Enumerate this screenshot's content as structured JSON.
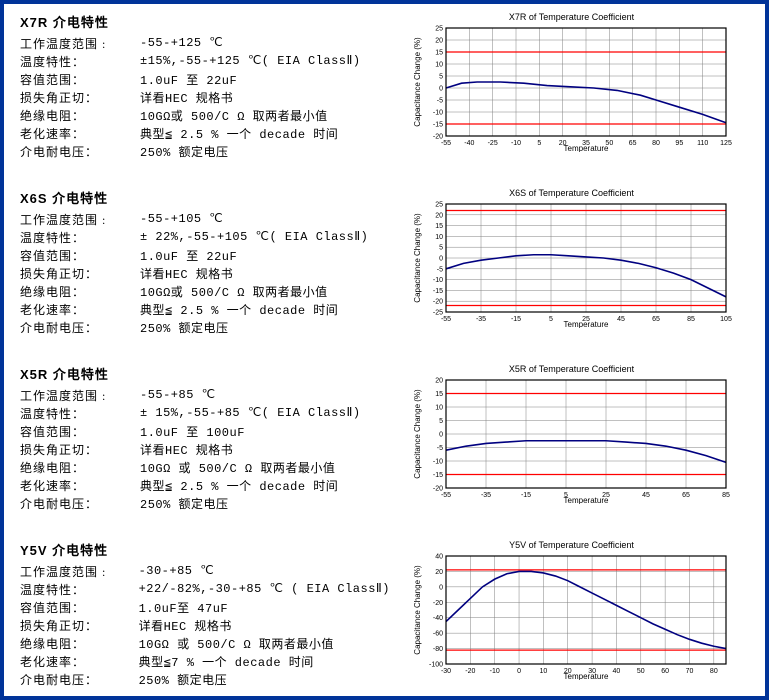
{
  "page_border_color": "#003399",
  "sections": [
    {
      "id": "x7r",
      "title": "X7R 介电特性",
      "rows": [
        {
          "label": "工作温度范围 :",
          "value": "-55-+125 ℃"
        },
        {
          "label": "温度特性：",
          "value": "±15%,-55-+125 ℃( EIA ClassⅡ)"
        },
        {
          "label": "容值范围：",
          "value": "1.0uF 至 22uF"
        },
        {
          "label": "损失角正切：",
          "value": "详看HEC 规格书"
        },
        {
          "label": "绝缘电阻：",
          "value": "10GΩ或 500/C Ω 取两者最小值"
        },
        {
          "label": "老化速率：",
          "value": "典型≦ 2.5 % 一个 decade 时间"
        },
        {
          "label": "介电耐电压：",
          "value": "250% 额定电压"
        }
      ],
      "chart": {
        "title": "X7R of Temperature Coefficient",
        "ylabel": "Capacitance Change (%)",
        "xlabel": "Temperature",
        "xlim": [
          -55,
          125
        ],
        "xtick_step": 15,
        "ylim": [
          -20,
          25
        ],
        "ytick_step": 5,
        "tolerance_lines": [
          -15,
          15
        ],
        "series": {
          "color": "#000080",
          "width": 1.6,
          "points": [
            [
              -55,
              0
            ],
            [
              -45,
              2
            ],
            [
              -35,
              2.5
            ],
            [
              -20,
              2.5
            ],
            [
              -5,
              2
            ],
            [
              10,
              1
            ],
            [
              25,
              0.5
            ],
            [
              40,
              0
            ],
            [
              55,
              -1
            ],
            [
              70,
              -3
            ],
            [
              80,
              -5
            ],
            [
              95,
              -8
            ],
            [
              110,
              -11
            ],
            [
              125,
              -14.5
            ]
          ]
        },
        "bg": "#ffffff",
        "grid": "#808080",
        "border": "#000000",
        "tol_color": "#ff0000",
        "tick_fontsize": 7,
        "label_fontsize": 9
      }
    },
    {
      "id": "x6s",
      "title": "X6S 介电特性",
      "rows": [
        {
          "label": "工作温度范围 :",
          "value": "-55-+105 ℃"
        },
        {
          "label": "温度特性：",
          "value": "± 22%,-55-+105 ℃( EIA ClassⅡ)"
        },
        {
          "label": "容值范围：",
          "value": "1.0uF 至 22uF"
        },
        {
          "label": "损失角正切：",
          "value": "详看HEC 规格书"
        },
        {
          "label": "绝缘电阻：",
          "value": "10GΩ或 500/C Ω 取两者最小值"
        },
        {
          "label": "老化速率：",
          "value": "典型≦ 2.5 % 一个 decade 时间"
        },
        {
          "label": "介电耐电压：",
          "value": "250% 额定电压"
        }
      ],
      "chart": {
        "title": "X6S of Temperature Coefficient",
        "ylabel": "Capacitance Change (%)",
        "xlabel": "Temperature",
        "xlim": [
          -55,
          105
        ],
        "xtick_step": 20,
        "ylim": [
          -25,
          25
        ],
        "ytick_step": 5,
        "tolerance_lines": [
          -22,
          22
        ],
        "series": {
          "color": "#000080",
          "width": 1.6,
          "points": [
            [
              -55,
              -5
            ],
            [
              -45,
              -2.5
            ],
            [
              -35,
              -1
            ],
            [
              -25,
              0
            ],
            [
              -15,
              1
            ],
            [
              -5,
              1.5
            ],
            [
              5,
              1.5
            ],
            [
              15,
              1
            ],
            [
              25,
              0.5
            ],
            [
              35,
              0
            ],
            [
              45,
              -1
            ],
            [
              55,
              -2.5
            ],
            [
              65,
              -4.5
            ],
            [
              75,
              -7
            ],
            [
              85,
              -10
            ],
            [
              95,
              -14
            ],
            [
              105,
              -18
            ]
          ]
        },
        "bg": "#ffffff",
        "grid": "#808080",
        "border": "#000000",
        "tol_color": "#ff0000",
        "tick_fontsize": 7,
        "label_fontsize": 9
      }
    },
    {
      "id": "x5r",
      "title": "X5R 介电特性",
      "rows": [
        {
          "label": "工作温度范围 :",
          "value": "-55-+85 ℃"
        },
        {
          "label": "温度特性：",
          "value": "± 15%,-55-+85 ℃( EIA ClassⅡ)"
        },
        {
          "label": "容值范围：",
          "value": "1.0uF 至 100uF"
        },
        {
          "label": "损失角正切：",
          "value": "详看HEC 规格书"
        },
        {
          "label": "绝缘电阻：",
          "value": "10GΩ  或 500/C Ω 取两者最小值"
        },
        {
          "label": "老化速率：",
          "value": "典型≦ 2.5 % 一个 decade 时间"
        },
        {
          "label": "介电耐电压：",
          "value": "250% 额定电压"
        }
      ],
      "chart": {
        "title": "X5R of  Temperature Coefficient",
        "ylabel": "Capacitance Change (%)",
        "xlabel": "Temperature",
        "xlim": [
          -55,
          85
        ],
        "xtick_step": 20,
        "ylim": [
          -20,
          20
        ],
        "ytick_step": 5,
        "tolerance_lines": [
          -15,
          15
        ],
        "series": {
          "color": "#000080",
          "width": 1.6,
          "points": [
            [
              -55,
              -6
            ],
            [
              -45,
              -4.5
            ],
            [
              -35,
              -3.5
            ],
            [
              -25,
              -3
            ],
            [
              -15,
              -2.5
            ],
            [
              -5,
              -2.5
            ],
            [
              5,
              -2.5
            ],
            [
              15,
              -2.5
            ],
            [
              25,
              -2.5
            ],
            [
              35,
              -3
            ],
            [
              45,
              -3.5
            ],
            [
              55,
              -4.5
            ],
            [
              65,
              -6
            ],
            [
              75,
              -8
            ],
            [
              85,
              -10.5
            ]
          ]
        },
        "bg": "#ffffff",
        "grid": "#808080",
        "border": "#000000",
        "tol_color": "#ff0000",
        "tick_fontsize": 7,
        "label_fontsize": 9
      }
    },
    {
      "id": "y5v",
      "title": "Y5V 介电特性",
      "rows": [
        {
          "label": "工作温度范围 :",
          "value": "-30-+85 ℃"
        },
        {
          "label": "温度特性：",
          "value": "+22/-82%,-30-+85 ℃ ( EIA ClassⅡ)"
        },
        {
          "label": "容值范围：",
          "value": "1.0uF至 47uF"
        },
        {
          "label": "损失角正切：",
          "value": "详看HEC 规格书"
        },
        {
          "label": "绝缘电阻：",
          "value": "10GΩ  或 500/C Ω 取两者最小值"
        },
        {
          "label": "老化速率：",
          "value": "典型≦7 % 一个 decade 时间"
        },
        {
          "label": "介电耐电压：",
          "value": "250% 额定电压"
        }
      ],
      "chart": {
        "title": "Y5V of  Temperature Coefficient",
        "ylabel": "Capacitance Change (%)",
        "xlabel": "Temperature",
        "xlim": [
          -30,
          85
        ],
        "xtick_step": 10,
        "ylim": [
          -100,
          40
        ],
        "ytick_step": 20,
        "tolerance_lines": [
          -82,
          22
        ],
        "series": {
          "color": "#000080",
          "width": 1.6,
          "points": [
            [
              -30,
              -45
            ],
            [
              -25,
              -30
            ],
            [
              -20,
              -15
            ],
            [
              -15,
              0
            ],
            [
              -10,
              10
            ],
            [
              -5,
              17
            ],
            [
              0,
              20
            ],
            [
              5,
              20
            ],
            [
              10,
              18
            ],
            [
              15,
              14
            ],
            [
              20,
              8
            ],
            [
              25,
              0
            ],
            [
              30,
              -8
            ],
            [
              35,
              -16
            ],
            [
              40,
              -24
            ],
            [
              45,
              -32
            ],
            [
              50,
              -40
            ],
            [
              55,
              -48
            ],
            [
              60,
              -55
            ],
            [
              65,
              -62
            ],
            [
              70,
              -68
            ],
            [
              75,
              -73
            ],
            [
              80,
              -77
            ],
            [
              85,
              -80
            ]
          ]
        },
        "bg": "#ffffff",
        "grid": "#808080",
        "border": "#000000",
        "tol_color": "#ff0000",
        "tick_fontsize": 7,
        "label_fontsize": 9
      }
    }
  ]
}
